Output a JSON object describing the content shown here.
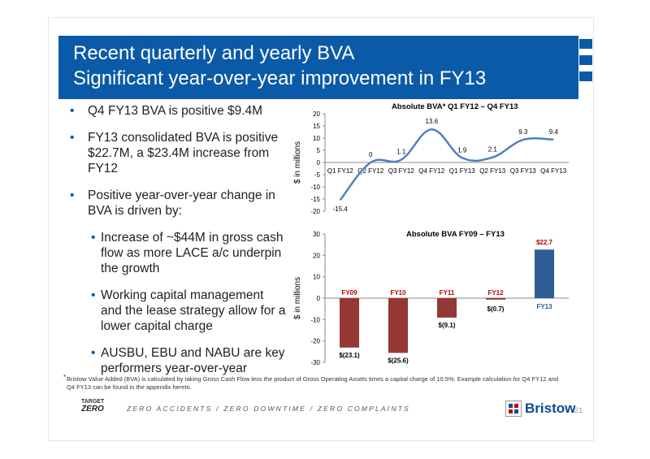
{
  "title": {
    "line1": "Recent quarterly and yearly BVA",
    "line2": "Significant year-over-year improvement in FY13"
  },
  "bullets": [
    {
      "level": 1,
      "text": "Q4 FY13 BVA is positive $9.4M"
    },
    {
      "level": 1,
      "text": "FY13 consolidated BVA is positive $22.7M, a $23.4M increase from FY12"
    },
    {
      "level": 1,
      "text": "Positive year-over-year change in BVA is driven by:"
    },
    {
      "level": 2,
      "text": "Increase of ~$44M in gross cash flow as more LACE a/c underpin the growth"
    },
    {
      "level": 2,
      "text": "Working capital management and the lease strategy allow for a lower capital charge"
    },
    {
      "level": 2,
      "text": "AUSBU, EBU and NABU are key performers year-over-year"
    }
  ],
  "footnote": {
    "marker": "*",
    "text": "Bristow Value Added (BVA) is calculated by taking Gross Cash Flow less the product of Gross Operating Assets times a capital charge of 10.5%. Example calculation for Q4 FY12 and Q4 FY13 can be found in the appendix hereto."
  },
  "footer": {
    "target_label": "TARGET",
    "zero_label": "ZERO",
    "tagline": "ZERO ACCIDENTS / ZERO DOWNTIME / ZERO COMPLAINTS",
    "brand": "Bristow",
    "page_number": "21"
  },
  "colors": {
    "title_bar": "#0b5aa8",
    "line": "#4f81bd",
    "bar_negative": "#953735",
    "bar_positive": "#2e5d95",
    "label_red": "#c00000"
  },
  "chart_data": [
    {
      "type": "line",
      "title": "Absolute BVA* Q1 FY12 – Q4 FY13",
      "ylabel": "$ in millions",
      "categories": [
        "Q1 FY12",
        "Q2 FY12",
        "Q3 FY12",
        "Q4 FY12",
        "Q1 FY13",
        "Q2 FY13",
        "Q3 FY13",
        "Q4 FY13"
      ],
      "values": [
        -15.4,
        0,
        1.1,
        13.6,
        1.9,
        2.1,
        9.3,
        9.4
      ],
      "value_labels": [
        "-15.4",
        "0",
        "1.1",
        "13.6",
        "1.9",
        "2.1",
        "9.3",
        "9.4"
      ],
      "ylim": [
        -20,
        20
      ],
      "yticks": [
        "20",
        "15",
        "10",
        "5",
        "0",
        "-5",
        "-10",
        "-15",
        "-20"
      ],
      "smooth": true
    },
    {
      "type": "bar",
      "title": "Absolute BVA FY09 – FY13",
      "ylabel": "$ in millions",
      "categories": [
        "FY09",
        "FY10",
        "FY11",
        "FY12",
        "FY13"
      ],
      "values": [
        -23.1,
        -25.6,
        -9.1,
        -0.7,
        22.7
      ],
      "value_labels": [
        "$(23.1)",
        "$(25.6)",
        "$(9.1)",
        "$(0.7)",
        "$22.7"
      ],
      "ylim": [
        -30,
        30
      ],
      "yticks": [
        "30",
        "20",
        "10",
        "0",
        "-10",
        "-20",
        "-30"
      ]
    }
  ]
}
